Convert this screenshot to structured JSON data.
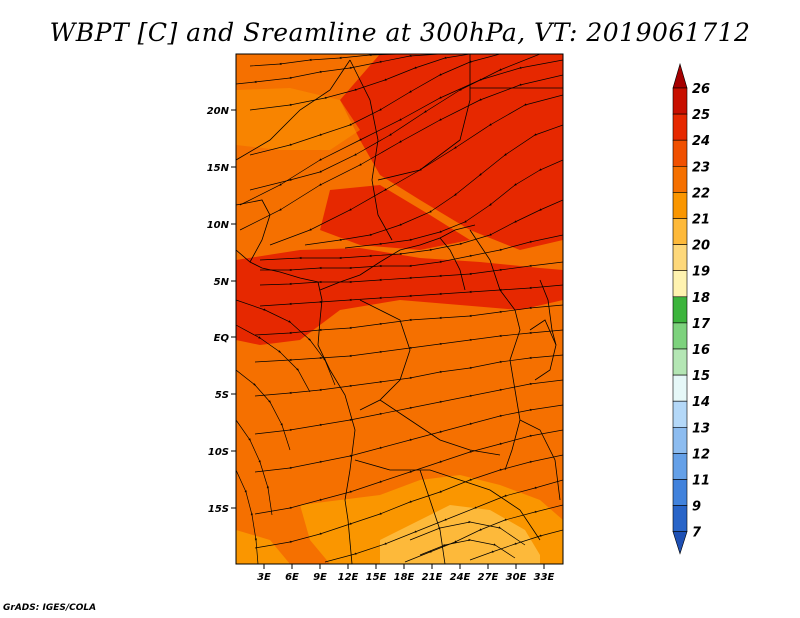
{
  "title": "WBPT [C] and Sreamline at 300hPa, VT: 2019061712",
  "footer": "GrADS: IGES/COLA",
  "chart_data": {
    "type": "heatmap",
    "variable": "WBPT [C]",
    "overlay": "Streamline",
    "level": "300hPa",
    "valid_time": "2019061712",
    "x_ticks": [
      "3E",
      "6E",
      "9E",
      "12E",
      "15E",
      "18E",
      "21E",
      "24E",
      "27E",
      "30E",
      "33E"
    ],
    "x_tick_values": [
      3,
      6,
      9,
      12,
      15,
      18,
      21,
      24,
      27,
      30,
      33
    ],
    "y_ticks": [
      "20N",
      "15N",
      "10N",
      "5N",
      "EQ",
      "5S",
      "10S",
      "15S"
    ],
    "y_tick_values": [
      20,
      15,
      10,
      5,
      0,
      -5,
      -10,
      -15
    ],
    "xlim": [
      0,
      35
    ],
    "ylim": [
      -20,
      25
    ],
    "colorbar": {
      "labels": [
        "26",
        "25",
        "24",
        "23",
        "22",
        "21",
        "20",
        "19",
        "18",
        "17",
        "16",
        "15",
        "14",
        "13",
        "12",
        "11",
        "9",
        "7"
      ],
      "colors": [
        "#a50000",
        "#c80f00",
        "#e62800",
        "#f05000",
        "#f57000",
        "#fa9600",
        "#fdb93a",
        "#fed87a",
        "#fff3b0",
        "#3cb43c",
        "#7dd27d",
        "#b4e6b4",
        "#e6f8f8",
        "#b4d8f8",
        "#8cbcf0",
        "#64a0e8",
        "#4182dc",
        "#2864c8",
        "#1e50b4"
      ]
    },
    "regions": [
      {
        "name": "northeast maximum",
        "value": 24
      },
      {
        "name": "equatorial band 0-7N",
        "value": 24
      },
      {
        "name": "southern Africa minimum",
        "value": 21
      }
    ]
  }
}
